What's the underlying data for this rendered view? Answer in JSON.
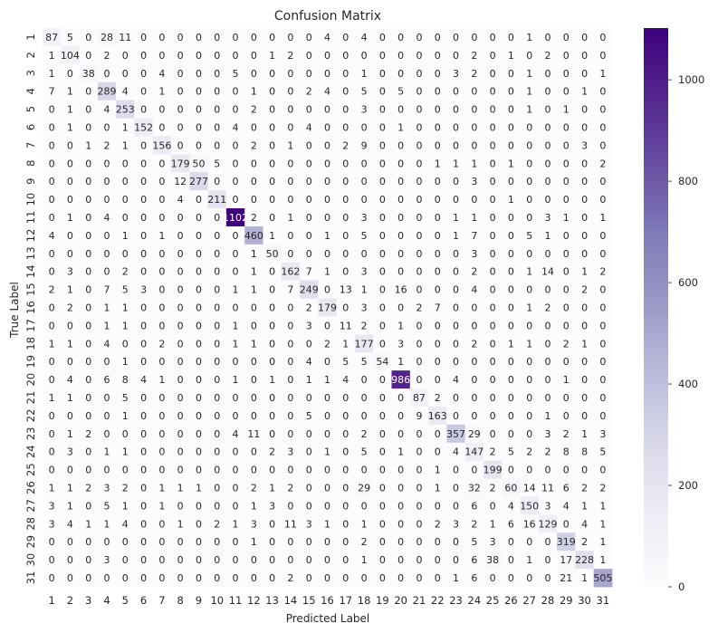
{
  "chart_data": {
    "type": "heatmap",
    "title": "Confusion Matrix",
    "xlabel": "Predicted Label",
    "ylabel": "True Label",
    "x_labels": [
      "1",
      "2",
      "3",
      "4",
      "5",
      "6",
      "7",
      "8",
      "9",
      "10",
      "11",
      "12",
      "13",
      "14",
      "15",
      "16",
      "17",
      "18",
      "19",
      "20",
      "21",
      "22",
      "23",
      "24",
      "25",
      "26",
      "27",
      "28",
      "29",
      "30",
      "31"
    ],
    "y_labels": [
      "1",
      "2",
      "3",
      "4",
      "5",
      "6",
      "7",
      "8",
      "9",
      "10",
      "11",
      "12",
      "13",
      "14",
      "15",
      "16",
      "17",
      "18",
      "19",
      "20",
      "21",
      "22",
      "23",
      "24",
      "25",
      "26",
      "27",
      "28",
      "29",
      "30",
      "31"
    ],
    "matrix": [
      [
        87,
        5,
        0,
        28,
        11,
        0,
        0,
        0,
        0,
        0,
        0,
        0,
        0,
        0,
        0,
        4,
        0,
        4,
        0,
        0,
        0,
        0,
        0,
        0,
        0,
        0,
        1,
        0,
        0,
        0,
        0
      ],
      [
        1,
        104,
        0,
        2,
        0,
        0,
        0,
        0,
        0,
        0,
        0,
        0,
        1,
        2,
        0,
        0,
        0,
        0,
        0,
        0,
        0,
        0,
        0,
        2,
        0,
        1,
        0,
        2,
        0,
        0,
        0
      ],
      [
        1,
        0,
        38,
        0,
        0,
        0,
        4,
        0,
        0,
        0,
        5,
        0,
        0,
        0,
        0,
        0,
        0,
        1,
        0,
        0,
        0,
        0,
        3,
        2,
        0,
        0,
        1,
        0,
        0,
        0,
        1
      ],
      [
        7,
        1,
        0,
        289,
        4,
        0,
        1,
        0,
        0,
        0,
        0,
        1,
        0,
        0,
        2,
        4,
        0,
        5,
        0,
        5,
        0,
        0,
        0,
        0,
        0,
        0,
        1,
        0,
        0,
        1,
        0
      ],
      [
        0,
        1,
        0,
        4,
        253,
        0,
        0,
        0,
        0,
        0,
        0,
        2,
        0,
        0,
        0,
        0,
        0,
        3,
        0,
        0,
        0,
        0,
        0,
        0,
        0,
        0,
        1,
        0,
        1,
        0,
        0
      ],
      [
        0,
        1,
        0,
        0,
        1,
        152,
        0,
        0,
        0,
        0,
        4,
        0,
        0,
        0,
        4,
        0,
        0,
        0,
        0,
        1,
        0,
        0,
        0,
        0,
        0,
        0,
        0,
        0,
        0,
        0,
        0
      ],
      [
        0,
        0,
        1,
        2,
        1,
        0,
        156,
        0,
        0,
        0,
        0,
        2,
        0,
        1,
        0,
        0,
        2,
        9,
        0,
        0,
        0,
        0,
        0,
        0,
        0,
        0,
        0,
        0,
        0,
        3,
        0
      ],
      [
        0,
        0,
        0,
        0,
        0,
        0,
        0,
        179,
        50,
        5,
        0,
        0,
        0,
        0,
        0,
        0,
        0,
        0,
        0,
        0,
        0,
        1,
        1,
        1,
        0,
        1,
        0,
        0,
        0,
        0,
        2
      ],
      [
        0,
        0,
        0,
        0,
        0,
        0,
        0,
        12,
        277,
        0,
        0,
        0,
        0,
        0,
        0,
        0,
        0,
        0,
        0,
        0,
        0,
        0,
        0,
        3,
        0,
        0,
        0,
        0,
        0,
        0,
        0
      ],
      [
        0,
        0,
        0,
        0,
        0,
        0,
        0,
        4,
        0,
        211,
        0,
        0,
        0,
        0,
        0,
        0,
        0,
        0,
        0,
        0,
        0,
        0,
        0,
        0,
        0,
        1,
        0,
        0,
        0,
        0,
        0
      ],
      [
        0,
        1,
        0,
        4,
        0,
        0,
        0,
        0,
        0,
        0,
        1102,
        2,
        0,
        1,
        0,
        0,
        0,
        3,
        0,
        0,
        0,
        0,
        1,
        1,
        0,
        0,
        0,
        3,
        1,
        0,
        1
      ],
      [
        4,
        0,
        0,
        0,
        1,
        0,
        1,
        0,
        0,
        0,
        0,
        460,
        1,
        0,
        0,
        1,
        0,
        5,
        0,
        0,
        0,
        0,
        1,
        7,
        0,
        0,
        5,
        1,
        0,
        0,
        0
      ],
      [
        0,
        0,
        0,
        0,
        0,
        0,
        0,
        0,
        0,
        0,
        0,
        1,
        50,
        0,
        0,
        0,
        0,
        0,
        0,
        0,
        0,
        0,
        0,
        3,
        0,
        0,
        0,
        0,
        0,
        0,
        0
      ],
      [
        0,
        3,
        0,
        0,
        2,
        0,
        0,
        0,
        0,
        0,
        0,
        1,
        0,
        162,
        7,
        1,
        0,
        3,
        0,
        0,
        0,
        0,
        0,
        2,
        0,
        0,
        1,
        14,
        0,
        1,
        2
      ],
      [
        2,
        1,
        0,
        7,
        5,
        3,
        0,
        0,
        0,
        0,
        1,
        1,
        0,
        7,
        249,
        0,
        13,
        1,
        0,
        16,
        0,
        0,
        0,
        4,
        0,
        0,
        0,
        0,
        0,
        2,
        0
      ],
      [
        0,
        2,
        0,
        1,
        1,
        0,
        0,
        0,
        0,
        0,
        0,
        0,
        0,
        0,
        2,
        179,
        0,
        3,
        0,
        0,
        2,
        7,
        0,
        0,
        0,
        0,
        1,
        2,
        0,
        0,
        0
      ],
      [
        0,
        0,
        0,
        1,
        1,
        0,
        0,
        0,
        0,
        0,
        1,
        0,
        0,
        0,
        3,
        0,
        11,
        2,
        0,
        1,
        0,
        0,
        0,
        0,
        0,
        0,
        0,
        0,
        0,
        0,
        0
      ],
      [
        1,
        1,
        0,
        4,
        0,
        0,
        2,
        0,
        0,
        0,
        1,
        1,
        0,
        0,
        0,
        2,
        1,
        177,
        0,
        3,
        0,
        0,
        0,
        2,
        0,
        1,
        1,
        0,
        2,
        1,
        0
      ],
      [
        0,
        0,
        0,
        0,
        1,
        0,
        0,
        0,
        0,
        0,
        0,
        0,
        0,
        0,
        4,
        0,
        5,
        5,
        54,
        1,
        0,
        0,
        0,
        0,
        0,
        0,
        0,
        0,
        0,
        0,
        0
      ],
      [
        0,
        4,
        0,
        6,
        8,
        4,
        1,
        0,
        0,
        0,
        1,
        0,
        1,
        0,
        1,
        1,
        4,
        0,
        0,
        986,
        0,
        0,
        4,
        0,
        0,
        0,
        0,
        0,
        1,
        0,
        0
      ],
      [
        1,
        1,
        0,
        0,
        5,
        0,
        0,
        0,
        0,
        0,
        0,
        0,
        0,
        0,
        0,
        0,
        0,
        0,
        0,
        0,
        87,
        2,
        0,
        0,
        0,
        0,
        0,
        0,
        0,
        0,
        0
      ],
      [
        0,
        0,
        0,
        0,
        1,
        0,
        0,
        0,
        0,
        0,
        0,
        0,
        0,
        0,
        5,
        0,
        0,
        0,
        0,
        0,
        9,
        163,
        0,
        0,
        0,
        0,
        0,
        1,
        0,
        0,
        0
      ],
      [
        0,
        1,
        2,
        0,
        0,
        0,
        0,
        0,
        0,
        0,
        4,
        11,
        0,
        0,
        0,
        0,
        0,
        2,
        0,
        0,
        0,
        0,
        357,
        29,
        0,
        0,
        0,
        3,
        2,
        1,
        3
      ],
      [
        0,
        3,
        0,
        1,
        1,
        0,
        0,
        0,
        0,
        0,
        0,
        0,
        2,
        3,
        0,
        1,
        0,
        5,
        0,
        1,
        0,
        0,
        4,
        147,
        2,
        5,
        2,
        2,
        8,
        8,
        5
      ],
      [
        0,
        0,
        0,
        0,
        0,
        0,
        0,
        0,
        0,
        0,
        0,
        0,
        0,
        0,
        0,
        0,
        0,
        0,
        0,
        0,
        0,
        1,
        0,
        0,
        199,
        0,
        0,
        0,
        0,
        0,
        0
      ],
      [
        1,
        1,
        2,
        3,
        2,
        0,
        1,
        1,
        1,
        0,
        0,
        2,
        1,
        2,
        0,
        0,
        0,
        29,
        0,
        0,
        0,
        1,
        0,
        32,
        2,
        60,
        14,
        11,
        6,
        2,
        2
      ],
      [
        3,
        1,
        0,
        5,
        1,
        0,
        1,
        0,
        0,
        0,
        0,
        1,
        3,
        0,
        0,
        0,
        0,
        0,
        0,
        0,
        0,
        0,
        0,
        6,
        0,
        4,
        150,
        3,
        4,
        1,
        1
      ],
      [
        3,
        4,
        1,
        1,
        4,
        0,
        0,
        1,
        0,
        2,
        1,
        3,
        0,
        11,
        3,
        1,
        0,
        1,
        0,
        0,
        0,
        2,
        3,
        2,
        1,
        6,
        16,
        129,
        0,
        4,
        1
      ],
      [
        0,
        0,
        0,
        0,
        0,
        0,
        0,
        0,
        0,
        0,
        0,
        1,
        0,
        0,
        0,
        0,
        0,
        2,
        0,
        0,
        0,
        0,
        0,
        5,
        3,
        0,
        0,
        0,
        319,
        2,
        1
      ],
      [
        0,
        0,
        0,
        3,
        0,
        0,
        0,
        0,
        0,
        0,
        0,
        0,
        0,
        0,
        0,
        0,
        0,
        1,
        0,
        0,
        0,
        0,
        0,
        6,
        38,
        0,
        1,
        0,
        17,
        228,
        1
      ],
      [
        0,
        0,
        0,
        0,
        0,
        0,
        0,
        0,
        0,
        0,
        0,
        0,
        0,
        2,
        0,
        0,
        0,
        0,
        0,
        0,
        0,
        0,
        1,
        6,
        0,
        0,
        0,
        0,
        21,
        1,
        505
      ]
    ],
    "colormap": "Purples",
    "vmin": 0,
    "vmax": 1102,
    "colorbar_ticks": [
      0,
      200,
      400,
      600,
      800,
      1000
    ],
    "colors": {
      "low": "#fcfbfd",
      "high": "#3f007d",
      "text_dark": "#262626",
      "text_light": "#ffffff"
    }
  }
}
